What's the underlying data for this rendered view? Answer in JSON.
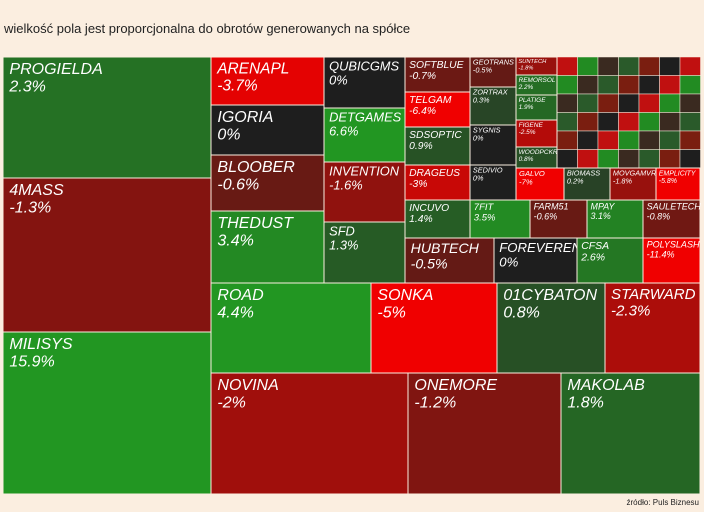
{
  "title": "wielkość pola jest proporcjonalna do obrotów generowanych na spółce",
  "source": "źródło: Puls Biznesu",
  "chart_data": {
    "type": "treemap",
    "categories": [
      "PROGIELDA",
      "4MASS",
      "MILISYS",
      "ARENAPL",
      "IGORIA",
      "BLOOBER",
      "THEDUST",
      "QUBICGMS",
      "DETGAMES",
      "INVENTION",
      "SFD",
      "SOFTBLUE",
      "GEOTRANS",
      "TELGAM",
      "SDSOPTIC",
      "DRAGEUS",
      "ZORTRAX",
      "SYGNIS",
      "SEDIVIO",
      "INCUVO",
      "7FIT",
      "HUBTECH",
      "FOREVEREN",
      "FARM51",
      "MPAY",
      "CFSA",
      "SAULETECH",
      "POLYSLASH",
      "SUNTECH",
      "REMORSOL",
      "PLATIGE",
      "FIGENE",
      "WOODPCKR",
      "GALVO",
      "BIOMASS",
      "MOVGAMVR",
      "EMPLICITY",
      "ROAD",
      "SONKA",
      "01CYBATON",
      "STARWARD",
      "NOVINA",
      "ONEMORE",
      "MAKOLAB"
    ],
    "values": [
      2.3,
      -1.3,
      15.9,
      -3.7,
      0,
      -0.6,
      3.4,
      0,
      6.6,
      -1.6,
      1.3,
      -0.7,
      -0.5,
      -6.4,
      0.9,
      -3,
      0.3,
      0,
      0,
      1.4,
      3.5,
      -0.5,
      0,
      -0.6,
      3.1,
      2.6,
      -0.8,
      -11.4,
      -1.8,
      2.2,
      1.9,
      -2.5,
      0.8,
      -7,
      0.2,
      -1.8,
      -5.8,
      4.4,
      -5,
      0.8,
      -2.3,
      -2,
      -1.2,
      1.8
    ],
    "value_labels": [
      "2.3%",
      "-1.3%",
      "15.9%",
      "-3.7%",
      "0%",
      "-0.6%",
      "3.4%",
      "0%",
      "6.6%",
      "-1.6%",
      "1.3%",
      "-0.7%",
      "-0.5%",
      "-6.4%",
      "0.9%",
      "-3%",
      "0.3%",
      "0%",
      "0%",
      "1.4%",
      "3.5%",
      "-0.5%",
      "0%",
      "-0.6%",
      "3.1%",
      "2.6%",
      "-0.8%",
      "-11.4%",
      "-1.8%",
      "2.2%",
      "1.9%",
      "-2.5%",
      "0.8%",
      "-7%",
      "0.2%",
      "-1.8%",
      "-5.8%",
      "4.4%",
      "-5%",
      "0.8%",
      "-2.3%",
      "-2%",
      "-1.2%",
      "1.8%"
    ]
  }
}
